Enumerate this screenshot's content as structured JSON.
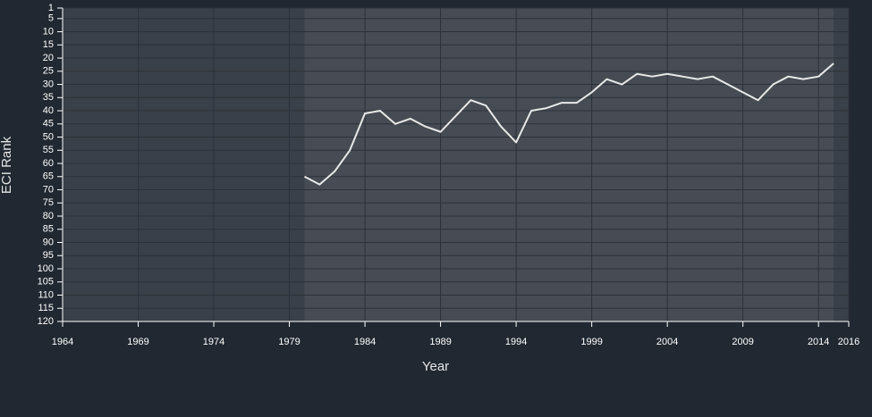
{
  "chart_data": {
    "type": "line",
    "xlabel": "Year",
    "ylabel": "ECI Rank",
    "x": [
      1980,
      1981,
      1982,
      1983,
      1984,
      1985,
      1986,
      1987,
      1988,
      1989,
      1990,
      1991,
      1992,
      1993,
      1994,
      1995,
      1996,
      1997,
      1998,
      1999,
      2000,
      2001,
      2002,
      2003,
      2004,
      2005,
      2006,
      2007,
      2008,
      2009,
      2010,
      2011,
      2012,
      2013,
      2014,
      2015
    ],
    "series": [
      {
        "color": "#e8e8e8",
        "values": [
          65,
          68,
          63,
          55,
          41,
          40,
          45,
          43,
          46,
          48,
          42,
          36,
          38,
          46,
          52,
          40,
          39,
          37,
          37,
          33,
          28,
          30,
          26,
          27,
          26,
          27,
          28,
          27,
          30,
          33,
          36,
          30,
          27,
          28,
          27,
          22
        ]
      }
    ],
    "xlim": [
      1964,
      2016
    ],
    "xticks": [
      1964,
      1969,
      1974,
      1979,
      1984,
      1989,
      1994,
      1999,
      2004,
      2009,
      2014,
      2016
    ],
    "ylim": [
      1,
      120
    ],
    "yticks": [
      1,
      5,
      10,
      15,
      20,
      25,
      30,
      35,
      40,
      45,
      50,
      55,
      60,
      65,
      70,
      75,
      80,
      85,
      90,
      95,
      100,
      105,
      110,
      115,
      120
    ],
    "y_inverted": true,
    "grid": true
  }
}
